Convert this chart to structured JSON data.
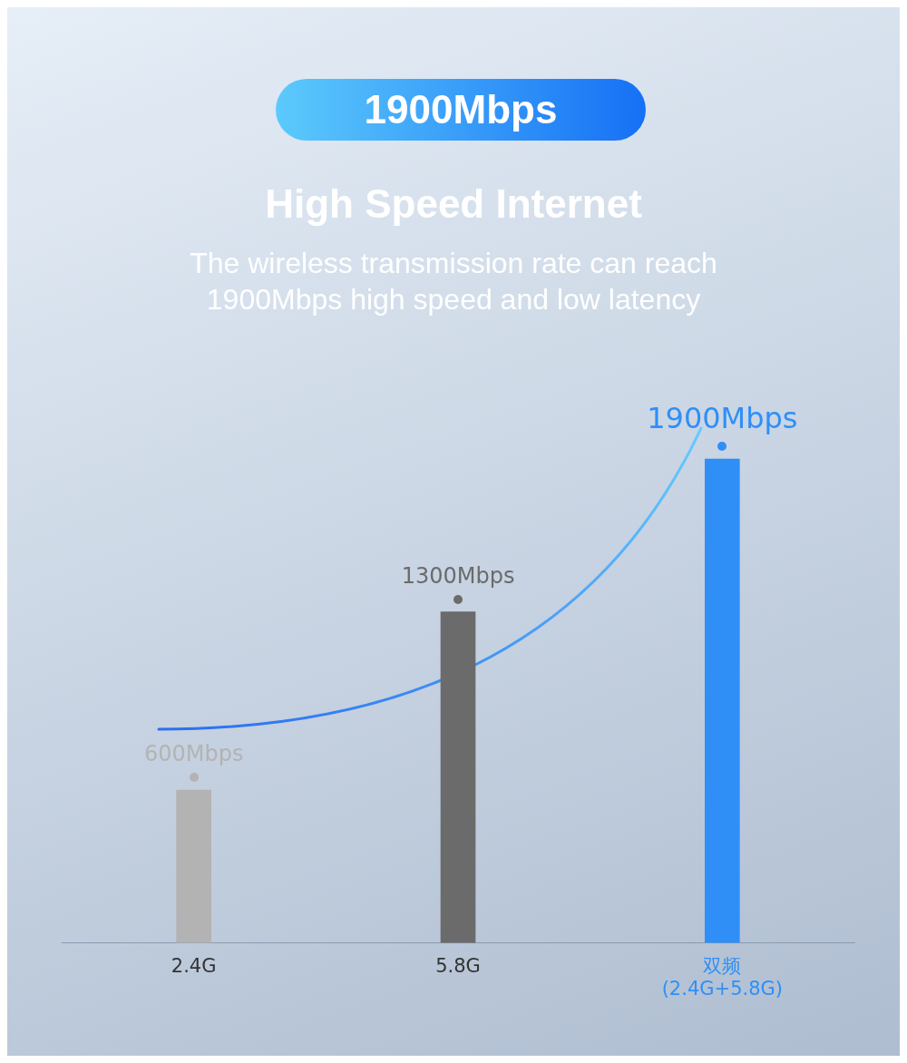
{
  "chart_data": {
    "type": "bar",
    "title": "High Speed Internet",
    "subtitle": "The wireless transmission rate can reach\n1900Mbps high speed and low latency",
    "annotations": [
      "1900Mbps"
    ],
    "categories": [
      "2.4G",
      "5.8G",
      "双频\n(2.4G+5.8G)"
    ],
    "values": [
      600,
      1300,
      1900
    ],
    "colors": [
      "#b3b3b3",
      "#6b6b6b",
      "#2f8ff7"
    ],
    "value_labels": [
      "600Mbps",
      "1300Mbps",
      "1900Mbps"
    ],
    "grid": false,
    "legend": false
  }
}
